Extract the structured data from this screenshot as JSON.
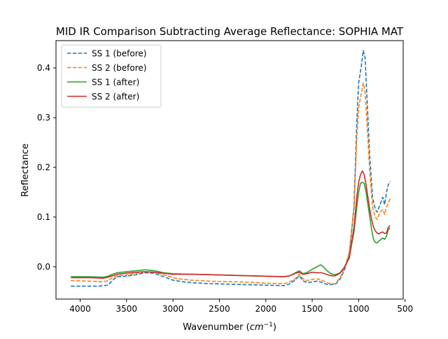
{
  "chart_data": {
    "type": "line",
    "title": "MID IR Comparison Subtracting Average Reflectance: SOPHIA MAT",
    "xlabel": "Wavenumber (cm⁻¹)",
    "ylabel": "Reflectance",
    "xlim": [
      4260,
      520
    ],
    "ylim": [
      -0.065,
      0.455
    ],
    "x_reversed": true,
    "xticks": [
      4000,
      3500,
      3000,
      2500,
      2000,
      1500,
      1000,
      500
    ],
    "yticks": [
      0.0,
      0.1,
      0.2,
      0.3,
      0.4
    ],
    "xtick_labels": [
      "4000",
      "3500",
      "3000",
      "2500",
      "2000",
      "1500",
      "1000",
      "500"
    ],
    "ytick_labels": [
      "0.0",
      "0.1",
      "0.2",
      "0.3",
      "0.4"
    ],
    "grid": false,
    "legend_position": "top-left",
    "series": [
      {
        "name": "SS 1 (before)",
        "color": "#1f77b4",
        "style": "dashed",
        "points": [
          [
            4100,
            -0.039
          ],
          [
            3900,
            -0.039
          ],
          [
            3800,
            -0.039
          ],
          [
            3700,
            -0.037
          ],
          [
            3650,
            -0.027
          ],
          [
            3600,
            -0.02
          ],
          [
            3500,
            -0.019
          ],
          [
            3400,
            -0.016
          ],
          [
            3300,
            -0.012
          ],
          [
            3200,
            -0.013
          ],
          [
            3100,
            -0.02
          ],
          [
            3000,
            -0.027
          ],
          [
            2900,
            -0.03
          ],
          [
            2800,
            -0.032
          ],
          [
            2600,
            -0.034
          ],
          [
            2400,
            -0.035
          ],
          [
            2200,
            -0.036
          ],
          [
            2000,
            -0.037
          ],
          [
            1800,
            -0.038
          ],
          [
            1750,
            -0.035
          ],
          [
            1680,
            -0.026
          ],
          [
            1640,
            -0.018
          ],
          [
            1600,
            -0.028
          ],
          [
            1560,
            -0.032
          ],
          [
            1520,
            -0.031
          ],
          [
            1450,
            -0.029
          ],
          [
            1400,
            -0.031
          ],
          [
            1350,
            -0.035
          ],
          [
            1300,
            -0.036
          ],
          [
            1250,
            -0.035
          ],
          [
            1200,
            -0.025
          ],
          [
            1150,
            -0.005
          ],
          [
            1100,
            0.025
          ],
          [
            1050,
            0.12
          ],
          [
            1020,
            0.29
          ],
          [
            1000,
            0.37
          ],
          [
            970,
            0.405
          ],
          [
            950,
            0.435
          ],
          [
            930,
            0.42
          ],
          [
            910,
            0.34
          ],
          [
            880,
            0.22
          ],
          [
            850,
            0.14
          ],
          [
            820,
            0.115
          ],
          [
            800,
            0.11
          ],
          [
            780,
            0.12
          ],
          [
            760,
            0.13
          ],
          [
            740,
            0.14
          ],
          [
            720,
            0.125
          ],
          [
            700,
            0.15
          ],
          [
            680,
            0.165
          ],
          [
            660,
            0.172
          ]
        ]
      },
      {
        "name": "SS 2 (before)",
        "color": "#ff7f0e",
        "style": "dashed",
        "points": [
          [
            4100,
            -0.028
          ],
          [
            3900,
            -0.029
          ],
          [
            3750,
            -0.03
          ],
          [
            3700,
            -0.028
          ],
          [
            3650,
            -0.022
          ],
          [
            3600,
            -0.018
          ],
          [
            3500,
            -0.017
          ],
          [
            3400,
            -0.013
          ],
          [
            3300,
            -0.01
          ],
          [
            3200,
            -0.011
          ],
          [
            3100,
            -0.016
          ],
          [
            3000,
            -0.022
          ],
          [
            2900,
            -0.025
          ],
          [
            2800,
            -0.027
          ],
          [
            2600,
            -0.029
          ],
          [
            2400,
            -0.03
          ],
          [
            2200,
            -0.031
          ],
          [
            2000,
            -0.033
          ],
          [
            1800,
            -0.034
          ],
          [
            1750,
            -0.031
          ],
          [
            1680,
            -0.024
          ],
          [
            1640,
            -0.015
          ],
          [
            1600,
            -0.024
          ],
          [
            1560,
            -0.028
          ],
          [
            1520,
            -0.026
          ],
          [
            1450,
            -0.024
          ],
          [
            1400,
            -0.027
          ],
          [
            1350,
            -0.031
          ],
          [
            1300,
            -0.034
          ],
          [
            1250,
            -0.034
          ],
          [
            1200,
            -0.022
          ],
          [
            1150,
            -0.002
          ],
          [
            1100,
            0.03
          ],
          [
            1050,
            0.12
          ],
          [
            1020,
            0.26
          ],
          [
            1000,
            0.32
          ],
          [
            970,
            0.35
          ],
          [
            950,
            0.37
          ],
          [
            930,
            0.35
          ],
          [
            910,
            0.29
          ],
          [
            880,
            0.19
          ],
          [
            850,
            0.12
          ],
          [
            820,
            0.1
          ],
          [
            800,
            0.095
          ],
          [
            780,
            0.105
          ],
          [
            760,
            0.112
          ],
          [
            740,
            0.115
          ],
          [
            720,
            0.105
          ],
          [
            700,
            0.12
          ],
          [
            680,
            0.128
          ],
          [
            660,
            0.138
          ]
        ]
      },
      {
        "name": "SS 1 (after)",
        "color": "#2ca02c",
        "style": "solid",
        "points": [
          [
            4100,
            -0.02
          ],
          [
            3900,
            -0.02
          ],
          [
            3750,
            -0.021
          ],
          [
            3700,
            -0.019
          ],
          [
            3650,
            -0.015
          ],
          [
            3600,
            -0.012
          ],
          [
            3500,
            -0.01
          ],
          [
            3400,
            -0.008
          ],
          [
            3300,
            -0.006
          ],
          [
            3200,
            -0.008
          ],
          [
            3100,
            -0.012
          ],
          [
            3000,
            -0.014
          ],
          [
            2800,
            -0.015
          ],
          [
            2600,
            -0.016
          ],
          [
            2400,
            -0.017
          ],
          [
            2200,
            -0.018
          ],
          [
            2000,
            -0.019
          ],
          [
            1800,
            -0.02
          ],
          [
            1740,
            -0.018
          ],
          [
            1680,
            -0.012
          ],
          [
            1640,
            -0.008
          ],
          [
            1600,
            -0.014
          ],
          [
            1560,
            -0.012
          ],
          [
            1500,
            -0.005
          ],
          [
            1450,
            0.0
          ],
          [
            1410,
            0.004
          ],
          [
            1380,
            0.0
          ],
          [
            1340,
            -0.008
          ],
          [
            1300,
            -0.014
          ],
          [
            1250,
            -0.016
          ],
          [
            1200,
            -0.012
          ],
          [
            1150,
            0.0
          ],
          [
            1100,
            0.02
          ],
          [
            1050,
            0.07
          ],
          [
            1020,
            0.12
          ],
          [
            1000,
            0.15
          ],
          [
            980,
            0.168
          ],
          [
            960,
            0.17
          ],
          [
            940,
            0.168
          ],
          [
            920,
            0.15
          ],
          [
            900,
            0.125
          ],
          [
            880,
            0.1
          ],
          [
            860,
            0.075
          ],
          [
            840,
            0.055
          ],
          [
            820,
            0.049
          ],
          [
            800,
            0.048
          ],
          [
            780,
            0.052
          ],
          [
            760,
            0.055
          ],
          [
            740,
            0.058
          ],
          [
            720,
            0.055
          ],
          [
            700,
            0.062
          ],
          [
            680,
            0.075
          ],
          [
            660,
            0.078
          ]
        ]
      },
      {
        "name": "SS 2 (after)",
        "color": "#d62728",
        "style": "solid",
        "points": [
          [
            4100,
            -0.022
          ],
          [
            3900,
            -0.022
          ],
          [
            3750,
            -0.023
          ],
          [
            3700,
            -0.021
          ],
          [
            3650,
            -0.018
          ],
          [
            3600,
            -0.015
          ],
          [
            3500,
            -0.013
          ],
          [
            3400,
            -0.011
          ],
          [
            3300,
            -0.01
          ],
          [
            3200,
            -0.011
          ],
          [
            3100,
            -0.013
          ],
          [
            3000,
            -0.015
          ],
          [
            2800,
            -0.015
          ],
          [
            2600,
            -0.016
          ],
          [
            2400,
            -0.017
          ],
          [
            2200,
            -0.018
          ],
          [
            2000,
            -0.019
          ],
          [
            1800,
            -0.02
          ],
          [
            1740,
            -0.018
          ],
          [
            1680,
            -0.013
          ],
          [
            1640,
            -0.011
          ],
          [
            1600,
            -0.015
          ],
          [
            1560,
            -0.014
          ],
          [
            1500,
            -0.011
          ],
          [
            1450,
            -0.012
          ],
          [
            1400,
            -0.012
          ],
          [
            1350,
            -0.015
          ],
          [
            1300,
            -0.018
          ],
          [
            1250,
            -0.018
          ],
          [
            1200,
            -0.013
          ],
          [
            1150,
            0.0
          ],
          [
            1100,
            0.018
          ],
          [
            1050,
            0.08
          ],
          [
            1020,
            0.14
          ],
          [
            1000,
            0.17
          ],
          [
            980,
            0.185
          ],
          [
            960,
            0.193
          ],
          [
            940,
            0.185
          ],
          [
            920,
            0.165
          ],
          [
            900,
            0.14
          ],
          [
            880,
            0.115
          ],
          [
            860,
            0.095
          ],
          [
            840,
            0.08
          ],
          [
            820,
            0.072
          ],
          [
            800,
            0.068
          ],
          [
            780,
            0.066
          ],
          [
            760,
            0.069
          ],
          [
            740,
            0.07
          ],
          [
            720,
            0.067
          ],
          [
            700,
            0.068
          ],
          [
            680,
            0.08
          ],
          [
            660,
            0.083
          ]
        ]
      }
    ]
  }
}
